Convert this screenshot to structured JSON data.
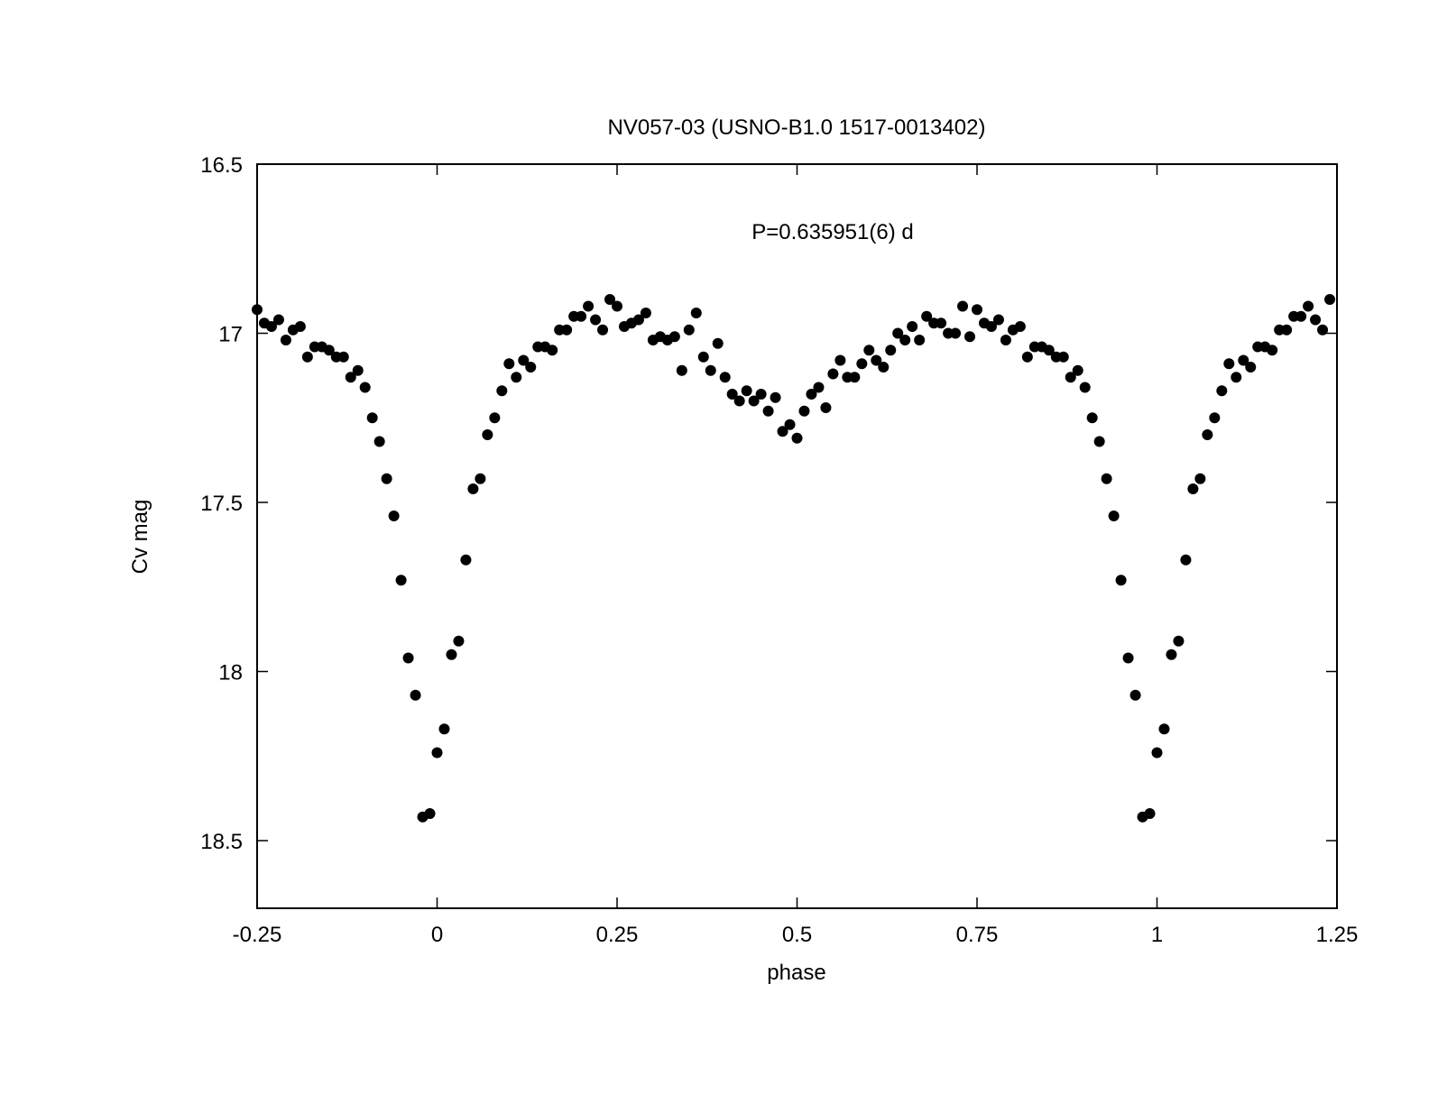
{
  "chart_data": {
    "type": "scatter",
    "title": "NV057-03 (USNO-B1.0 1517-0013402)",
    "annotation": "P=0.635951(6) d",
    "xlabel": "phase",
    "ylabel": "Cv mag",
    "xlim": [
      -0.25,
      1.25
    ],
    "ylim": [
      16.5,
      18.7
    ],
    "y_inverted": true,
    "grid": false,
    "legend": "none",
    "x_ticks": [
      {
        "value": -0.25,
        "label": "-0.25"
      },
      {
        "value": 0,
        "label": "0"
      },
      {
        "value": 0.25,
        "label": "0.25"
      },
      {
        "value": 0.5,
        "label": "0.5"
      },
      {
        "value": 0.75,
        "label": "0.75"
      },
      {
        "value": 1,
        "label": "1"
      },
      {
        "value": 1.25,
        "label": "1.25"
      }
    ],
    "y_ticks": [
      {
        "value": 16.5,
        "label": "16.5"
      },
      {
        "value": 17,
        "label": "17"
      },
      {
        "value": 17.5,
        "label": "17.5"
      },
      {
        "value": 18,
        "label": "18"
      },
      {
        "value": 18.5,
        "label": "18.5"
      }
    ],
    "marker_color": "#000000",
    "series": [
      {
        "points": [
          [
            -0.25,
            16.93
          ],
          [
            -0.24,
            16.97
          ],
          [
            -0.23,
            16.98
          ],
          [
            -0.22,
            16.96
          ],
          [
            -0.21,
            17.02
          ],
          [
            -0.2,
            16.99
          ],
          [
            -0.19,
            16.98
          ],
          [
            -0.18,
            17.07
          ],
          [
            -0.17,
            17.04
          ],
          [
            -0.16,
            17.04
          ],
          [
            -0.15,
            17.05
          ],
          [
            -0.14,
            17.07
          ],
          [
            -0.13,
            17.07
          ],
          [
            -0.12,
            17.13
          ],
          [
            -0.11,
            17.11
          ],
          [
            -0.1,
            17.16
          ],
          [
            -0.09,
            17.25
          ],
          [
            -0.08,
            17.32
          ],
          [
            -0.07,
            17.43
          ],
          [
            -0.06,
            17.54
          ],
          [
            -0.05,
            17.73
          ],
          [
            -0.04,
            17.96
          ],
          [
            -0.03,
            18.07
          ],
          [
            -0.02,
            18.43
          ],
          [
            -0.01,
            18.42
          ],
          [
            0.0,
            18.24
          ],
          [
            0.01,
            18.17
          ],
          [
            0.02,
            17.95
          ],
          [
            0.03,
            17.91
          ],
          [
            0.04,
            17.67
          ],
          [
            0.05,
            17.46
          ],
          [
            0.06,
            17.43
          ],
          [
            0.07,
            17.3
          ],
          [
            0.08,
            17.25
          ],
          [
            0.09,
            17.17
          ],
          [
            0.1,
            17.09
          ],
          [
            0.11,
            17.13
          ],
          [
            0.12,
            17.08
          ],
          [
            0.13,
            17.1
          ],
          [
            0.14,
            17.04
          ],
          [
            0.15,
            17.04
          ],
          [
            0.16,
            17.05
          ],
          [
            0.17,
            16.99
          ],
          [
            0.18,
            16.99
          ],
          [
            0.19,
            16.95
          ],
          [
            0.2,
            16.95
          ],
          [
            0.21,
            16.92
          ],
          [
            0.22,
            16.96
          ],
          [
            0.23,
            16.99
          ],
          [
            0.24,
            16.9
          ],
          [
            0.25,
            16.92
          ],
          [
            0.26,
            16.98
          ],
          [
            0.27,
            16.97
          ],
          [
            0.28,
            16.96
          ],
          [
            0.29,
            16.94
          ],
          [
            0.3,
            17.02
          ],
          [
            0.31,
            17.01
          ],
          [
            0.32,
            17.02
          ],
          [
            0.33,
            17.01
          ],
          [
            0.34,
            17.11
          ],
          [
            0.35,
            16.99
          ],
          [
            0.36,
            16.94
          ],
          [
            0.37,
            17.07
          ],
          [
            0.38,
            17.11
          ],
          [
            0.39,
            17.03
          ],
          [
            0.4,
            17.13
          ],
          [
            0.41,
            17.18
          ],
          [
            0.42,
            17.2
          ],
          [
            0.43,
            17.17
          ],
          [
            0.44,
            17.2
          ],
          [
            0.45,
            17.18
          ],
          [
            0.46,
            17.23
          ],
          [
            0.47,
            17.19
          ],
          [
            0.48,
            17.29
          ],
          [
            0.49,
            17.27
          ],
          [
            0.5,
            17.31
          ],
          [
            0.51,
            17.23
          ],
          [
            0.52,
            17.18
          ],
          [
            0.53,
            17.16
          ],
          [
            0.54,
            17.22
          ],
          [
            0.55,
            17.12
          ],
          [
            0.56,
            17.08
          ],
          [
            0.57,
            17.13
          ],
          [
            0.58,
            17.13
          ],
          [
            0.59,
            17.09
          ],
          [
            0.6,
            17.05
          ],
          [
            0.61,
            17.08
          ],
          [
            0.62,
            17.1
          ],
          [
            0.63,
            17.05
          ],
          [
            0.64,
            17.0
          ],
          [
            0.65,
            17.02
          ],
          [
            0.66,
            16.98
          ],
          [
            0.67,
            17.02
          ],
          [
            0.68,
            16.95
          ],
          [
            0.69,
            16.97
          ],
          [
            0.7,
            16.97
          ],
          [
            0.71,
            17.0
          ],
          [
            0.72,
            17.0
          ],
          [
            0.73,
            16.92
          ],
          [
            0.74,
            17.01
          ],
          [
            0.75,
            16.93
          ],
          [
            0.76,
            16.97
          ],
          [
            0.77,
            16.98
          ],
          [
            0.78,
            16.96
          ],
          [
            0.79,
            17.02
          ],
          [
            0.8,
            16.99
          ],
          [
            0.81,
            16.98
          ],
          [
            0.82,
            17.07
          ],
          [
            0.83,
            17.04
          ],
          [
            0.84,
            17.04
          ],
          [
            0.85,
            17.05
          ],
          [
            0.86,
            17.07
          ],
          [
            0.87,
            17.07
          ],
          [
            0.88,
            17.13
          ],
          [
            0.89,
            17.11
          ],
          [
            0.9,
            17.16
          ],
          [
            0.91,
            17.25
          ],
          [
            0.92,
            17.32
          ],
          [
            0.93,
            17.43
          ],
          [
            0.94,
            17.54
          ],
          [
            0.95,
            17.73
          ],
          [
            0.96,
            17.96
          ],
          [
            0.97,
            18.07
          ],
          [
            0.98,
            18.43
          ],
          [
            0.99,
            18.42
          ],
          [
            1.0,
            18.24
          ],
          [
            1.01,
            18.17
          ],
          [
            1.02,
            17.95
          ],
          [
            1.03,
            17.91
          ],
          [
            1.04,
            17.67
          ],
          [
            1.05,
            17.46
          ],
          [
            1.06,
            17.43
          ],
          [
            1.07,
            17.3
          ],
          [
            1.08,
            17.25
          ],
          [
            1.09,
            17.17
          ],
          [
            1.1,
            17.09
          ],
          [
            1.11,
            17.13
          ],
          [
            1.12,
            17.08
          ],
          [
            1.13,
            17.1
          ],
          [
            1.14,
            17.04
          ],
          [
            1.15,
            17.04
          ],
          [
            1.16,
            17.05
          ],
          [
            1.17,
            16.99
          ],
          [
            1.18,
            16.99
          ],
          [
            1.19,
            16.95
          ],
          [
            1.2,
            16.95
          ],
          [
            1.21,
            16.92
          ],
          [
            1.22,
            16.96
          ],
          [
            1.23,
            16.99
          ],
          [
            1.24,
            16.9
          ]
        ]
      }
    ]
  }
}
